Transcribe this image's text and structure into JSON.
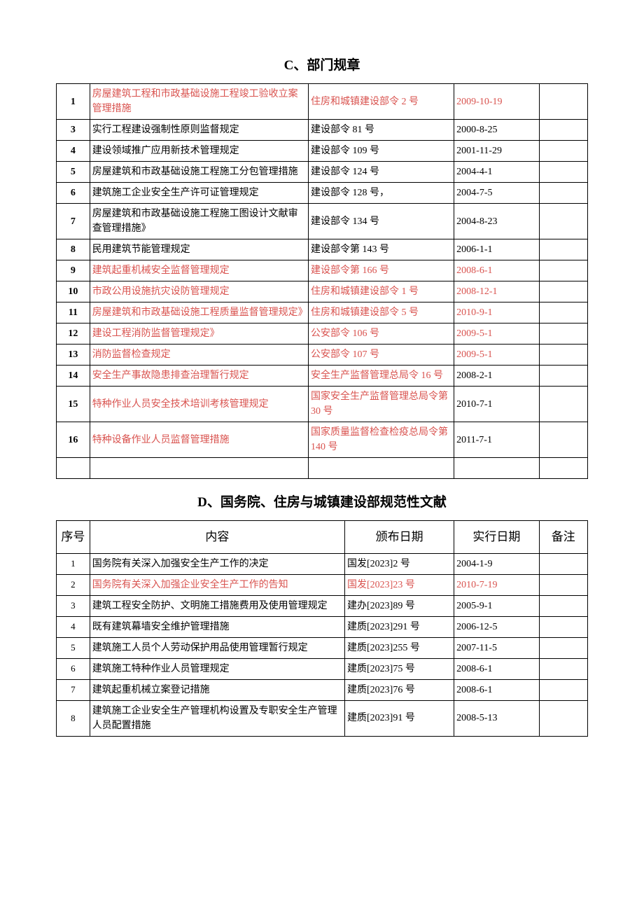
{
  "sectionC": {
    "title": "C、部门规章",
    "rows": [
      {
        "num": "1",
        "content": "房屋建筑工程和市政基础设施工程竣工验收立案管理措施",
        "order": "住房和城镇建设部令 2 号",
        "date": "2009-10-19",
        "note": "",
        "red": true
      },
      {
        "num": "3",
        "content": "实行工程建设强制性原则监督规定",
        "order": "建设部令 81 号",
        "date": "2000-8-25",
        "note": "",
        "red": false
      },
      {
        "num": "4",
        "content": "建设领域推广应用新技术管理规定",
        "order": "建设部令 109 号",
        "date": "2001-11-29",
        "note": "",
        "red": false
      },
      {
        "num": "5",
        "content": "房屋建筑和市政基础设施工程施工分包管理措施",
        "order": "建设部令 124 号",
        "date": "2004-4-1",
        "note": "",
        "red": false
      },
      {
        "num": "6",
        "content": "建筑施工企业安全生产许可证管理规定",
        "order": "建设部令 128 号，",
        "date": "2004-7-5",
        "note": "",
        "red": false
      },
      {
        "num": "7",
        "content": "房屋建筑和市政基础设施工程施工图设计文献审查管理措施》",
        "order": "建设部令 134 号",
        "date": "2004-8-23",
        "note": "",
        "red": false
      },
      {
        "num": "8",
        "content": "民用建筑节能管理规定",
        "order": "建设部令第 143 号",
        "date": "2006-1-1",
        "note": "",
        "red": false
      },
      {
        "num": "9",
        "content": "建筑起重机械安全监督管理规定",
        "order": "建设部令第 166 号",
        "date": "2008-6-1",
        "note": "",
        "red": true
      },
      {
        "num": "10",
        "content": "市政公用设施抗灾设防管理规定",
        "order": "住房和城镇建设部令 1 号",
        "date": "2008-12-1",
        "note": "",
        "red": true
      },
      {
        "num": "11",
        "content": "房屋建筑和市政基础设施工程质量监督管理规定》",
        "order": "住房和城镇建设部令 5 号",
        "date": "2010-9-1",
        "note": "",
        "red": true
      },
      {
        "num": "12",
        "content": "建设工程消防监督管理规定》",
        "order": "公安部令 106 号",
        "date": "2009-5-1",
        "note": "",
        "red": true
      },
      {
        "num": "13",
        "content": "消防监督检查规定",
        "order": "公安部令 107 号",
        "date": "2009-5-1",
        "note": "",
        "red": true
      },
      {
        "num": "14",
        "content": "安全生产事故隐患排查治理暂行规定",
        "order": "安全生产监督管理总局令 16 号",
        "date": "2008-2-1",
        "note": "",
        "redContent": true
      },
      {
        "num": "15",
        "content": "特种作业人员安全技术培训考核管理规定",
        "order": "国家安全生产监督管理总局令第 30 号",
        "date": "2010-7-1",
        "note": "",
        "redContent": true
      },
      {
        "num": "16",
        "content": "特种设备作业人员监督管理措施",
        "order": "国家质量监督检查检疫总局令第 140 号",
        "date": "2011-7-1",
        "note": "",
        "redContent": true
      }
    ]
  },
  "sectionD": {
    "title": "D、国务院、住房与城镇建设部规范性文献",
    "headers": {
      "num": "序号",
      "content": "内容",
      "order": "颁布日期",
      "date": "实行日期",
      "note": "备注"
    },
    "rows": [
      {
        "num": "1",
        "content": "国务院有关深入加强安全生产工作的决定",
        "order": "国发[2023]2 号",
        "date": "2004-1-9",
        "note": "",
        "red": false
      },
      {
        "num": "2",
        "content": "国务院有关深入加强企业安全生产工作的告知",
        "order": "国发[2023]23 号",
        "date": "2010-7-19",
        "note": "",
        "red": true
      },
      {
        "num": "3",
        "content": "建筑工程安全防护、文明施工措施费用及使用管理规定",
        "order": "建办[2023]89 号",
        "date": "2005-9-1",
        "note": "",
        "red": false
      },
      {
        "num": "4",
        "content": "既有建筑幕墙安全维护管理措施",
        "order": "建质[2023]291 号",
        "date": "2006-12-5",
        "note": "",
        "red": false
      },
      {
        "num": "5",
        "content": "建筑施工人员个人劳动保护用品使用管理暂行规定",
        "order": "建质[2023]255 号",
        "date": "2007-11-5",
        "note": "",
        "red": false
      },
      {
        "num": "6",
        "content": "建筑施工特种作业人员管理规定",
        "order": "建质[2023]75 号",
        "date": "2008-6-1",
        "note": "",
        "red": false
      },
      {
        "num": "7",
        "content": "建筑起重机械立案登记措施",
        "order": "建质[2023]76 号",
        "date": "2008-6-1",
        "note": "",
        "red": false
      },
      {
        "num": "8",
        "content": "建筑施工企业安全生产管理机构设置及专职安全生产管理人员配置措施",
        "order": "建质[2023]91 号",
        "date": "2008-5-13",
        "note": "",
        "red": false
      }
    ]
  }
}
